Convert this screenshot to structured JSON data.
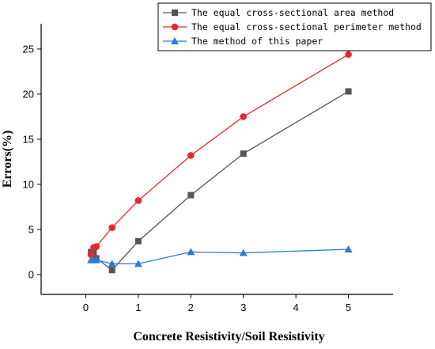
{
  "chart_data": {
    "type": "line",
    "title": "",
    "xlabel": "Concrete Resistivity/Soil Resistivity",
    "ylabel": "Errors(%)",
    "xlim": [
      -0.85,
      5.85
    ],
    "ylim": [
      -2.2,
      27.8
    ],
    "xticks": [
      0,
      1,
      2,
      3,
      4,
      5
    ],
    "yticks": [
      0,
      5,
      10,
      15,
      20,
      25
    ],
    "grid": false,
    "legend_position": "top-right",
    "series": [
      {
        "name": "The equal cross-sectional area method",
        "color": "#555555",
        "marker": "square",
        "x": [
          0.1,
          0.15,
          0.2,
          0.5,
          1,
          2,
          3,
          5
        ],
        "y": [
          2.5,
          2.5,
          1.8,
          0.5,
          3.7,
          8.8,
          13.4,
          20.3
        ]
      },
      {
        "name": "The equal cross-sectional perimeter method",
        "color": "#e8282b",
        "marker": "circle",
        "x": [
          0.1,
          0.15,
          0.2,
          0.5,
          1,
          2,
          3,
          5
        ],
        "y": [
          2.2,
          3.0,
          3.1,
          5.2,
          8.2,
          13.2,
          17.5,
          24.4
        ]
      },
      {
        "name": "The method of this paper",
        "color": "#2e78d8",
        "marker": "triangle",
        "x": [
          0.1,
          0.15,
          0.2,
          0.5,
          1,
          2,
          3,
          5
        ],
        "y": [
          1.6,
          1.6,
          1.6,
          1.2,
          1.2,
          2.5,
          2.4,
          2.8
        ]
      }
    ]
  }
}
